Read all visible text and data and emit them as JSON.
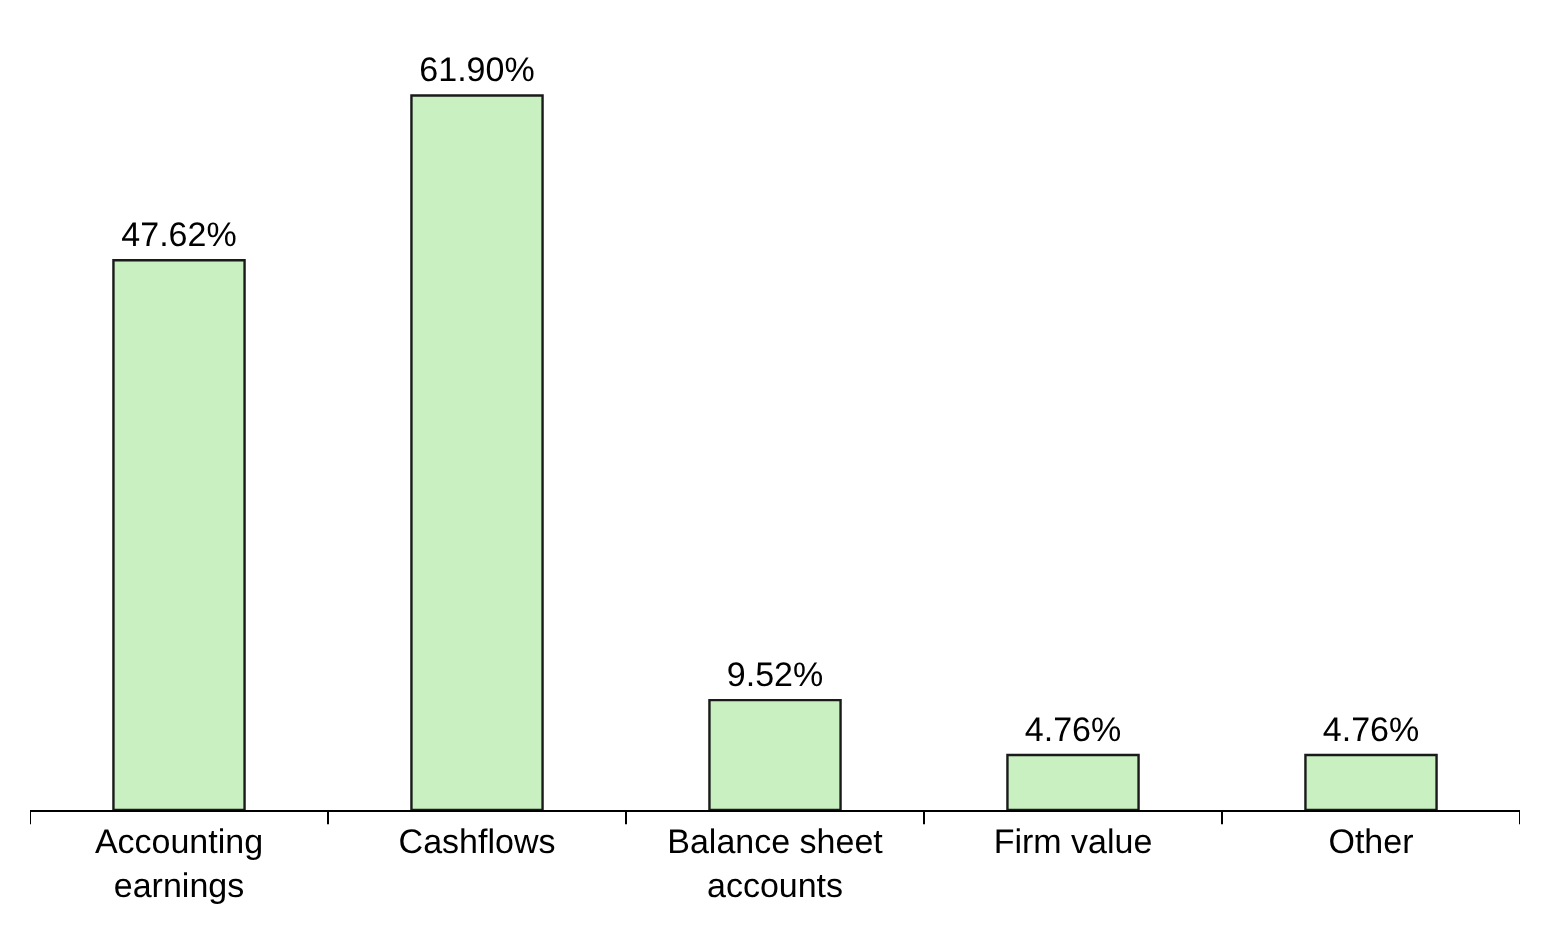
{
  "chart_data": {
    "type": "bar",
    "categories": [
      "Accounting earnings",
      "Cashflows",
      "Balance sheet accounts",
      "Firm value",
      "Other"
    ],
    "values": [
      47.62,
      61.9,
      9.52,
      4.76,
      4.76
    ],
    "value_labels": [
      "47.62%",
      "61.90%",
      "9.52%",
      "4.76%",
      "4.76%"
    ],
    "color": "#c8f0c0"
  }
}
